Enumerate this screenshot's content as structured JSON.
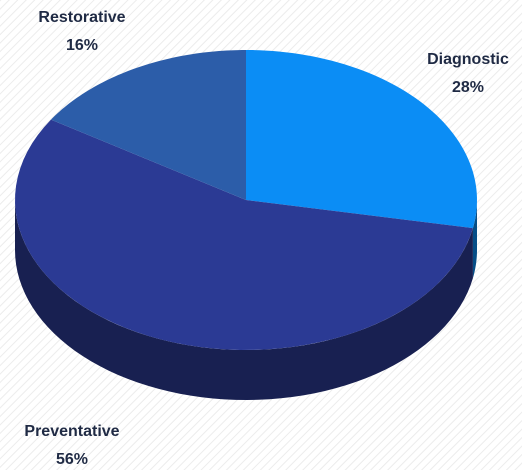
{
  "chart_data": {
    "type": "pie",
    "categories": [
      "Diagnostic",
      "Preventative",
      "Restorative"
    ],
    "values": [
      28,
      56,
      16
    ],
    "value_labels": [
      "28%",
      "56%",
      "16%"
    ],
    "colors": [
      "#0b8df5",
      "#2b3a94",
      "#2c5da9"
    ]
  }
}
